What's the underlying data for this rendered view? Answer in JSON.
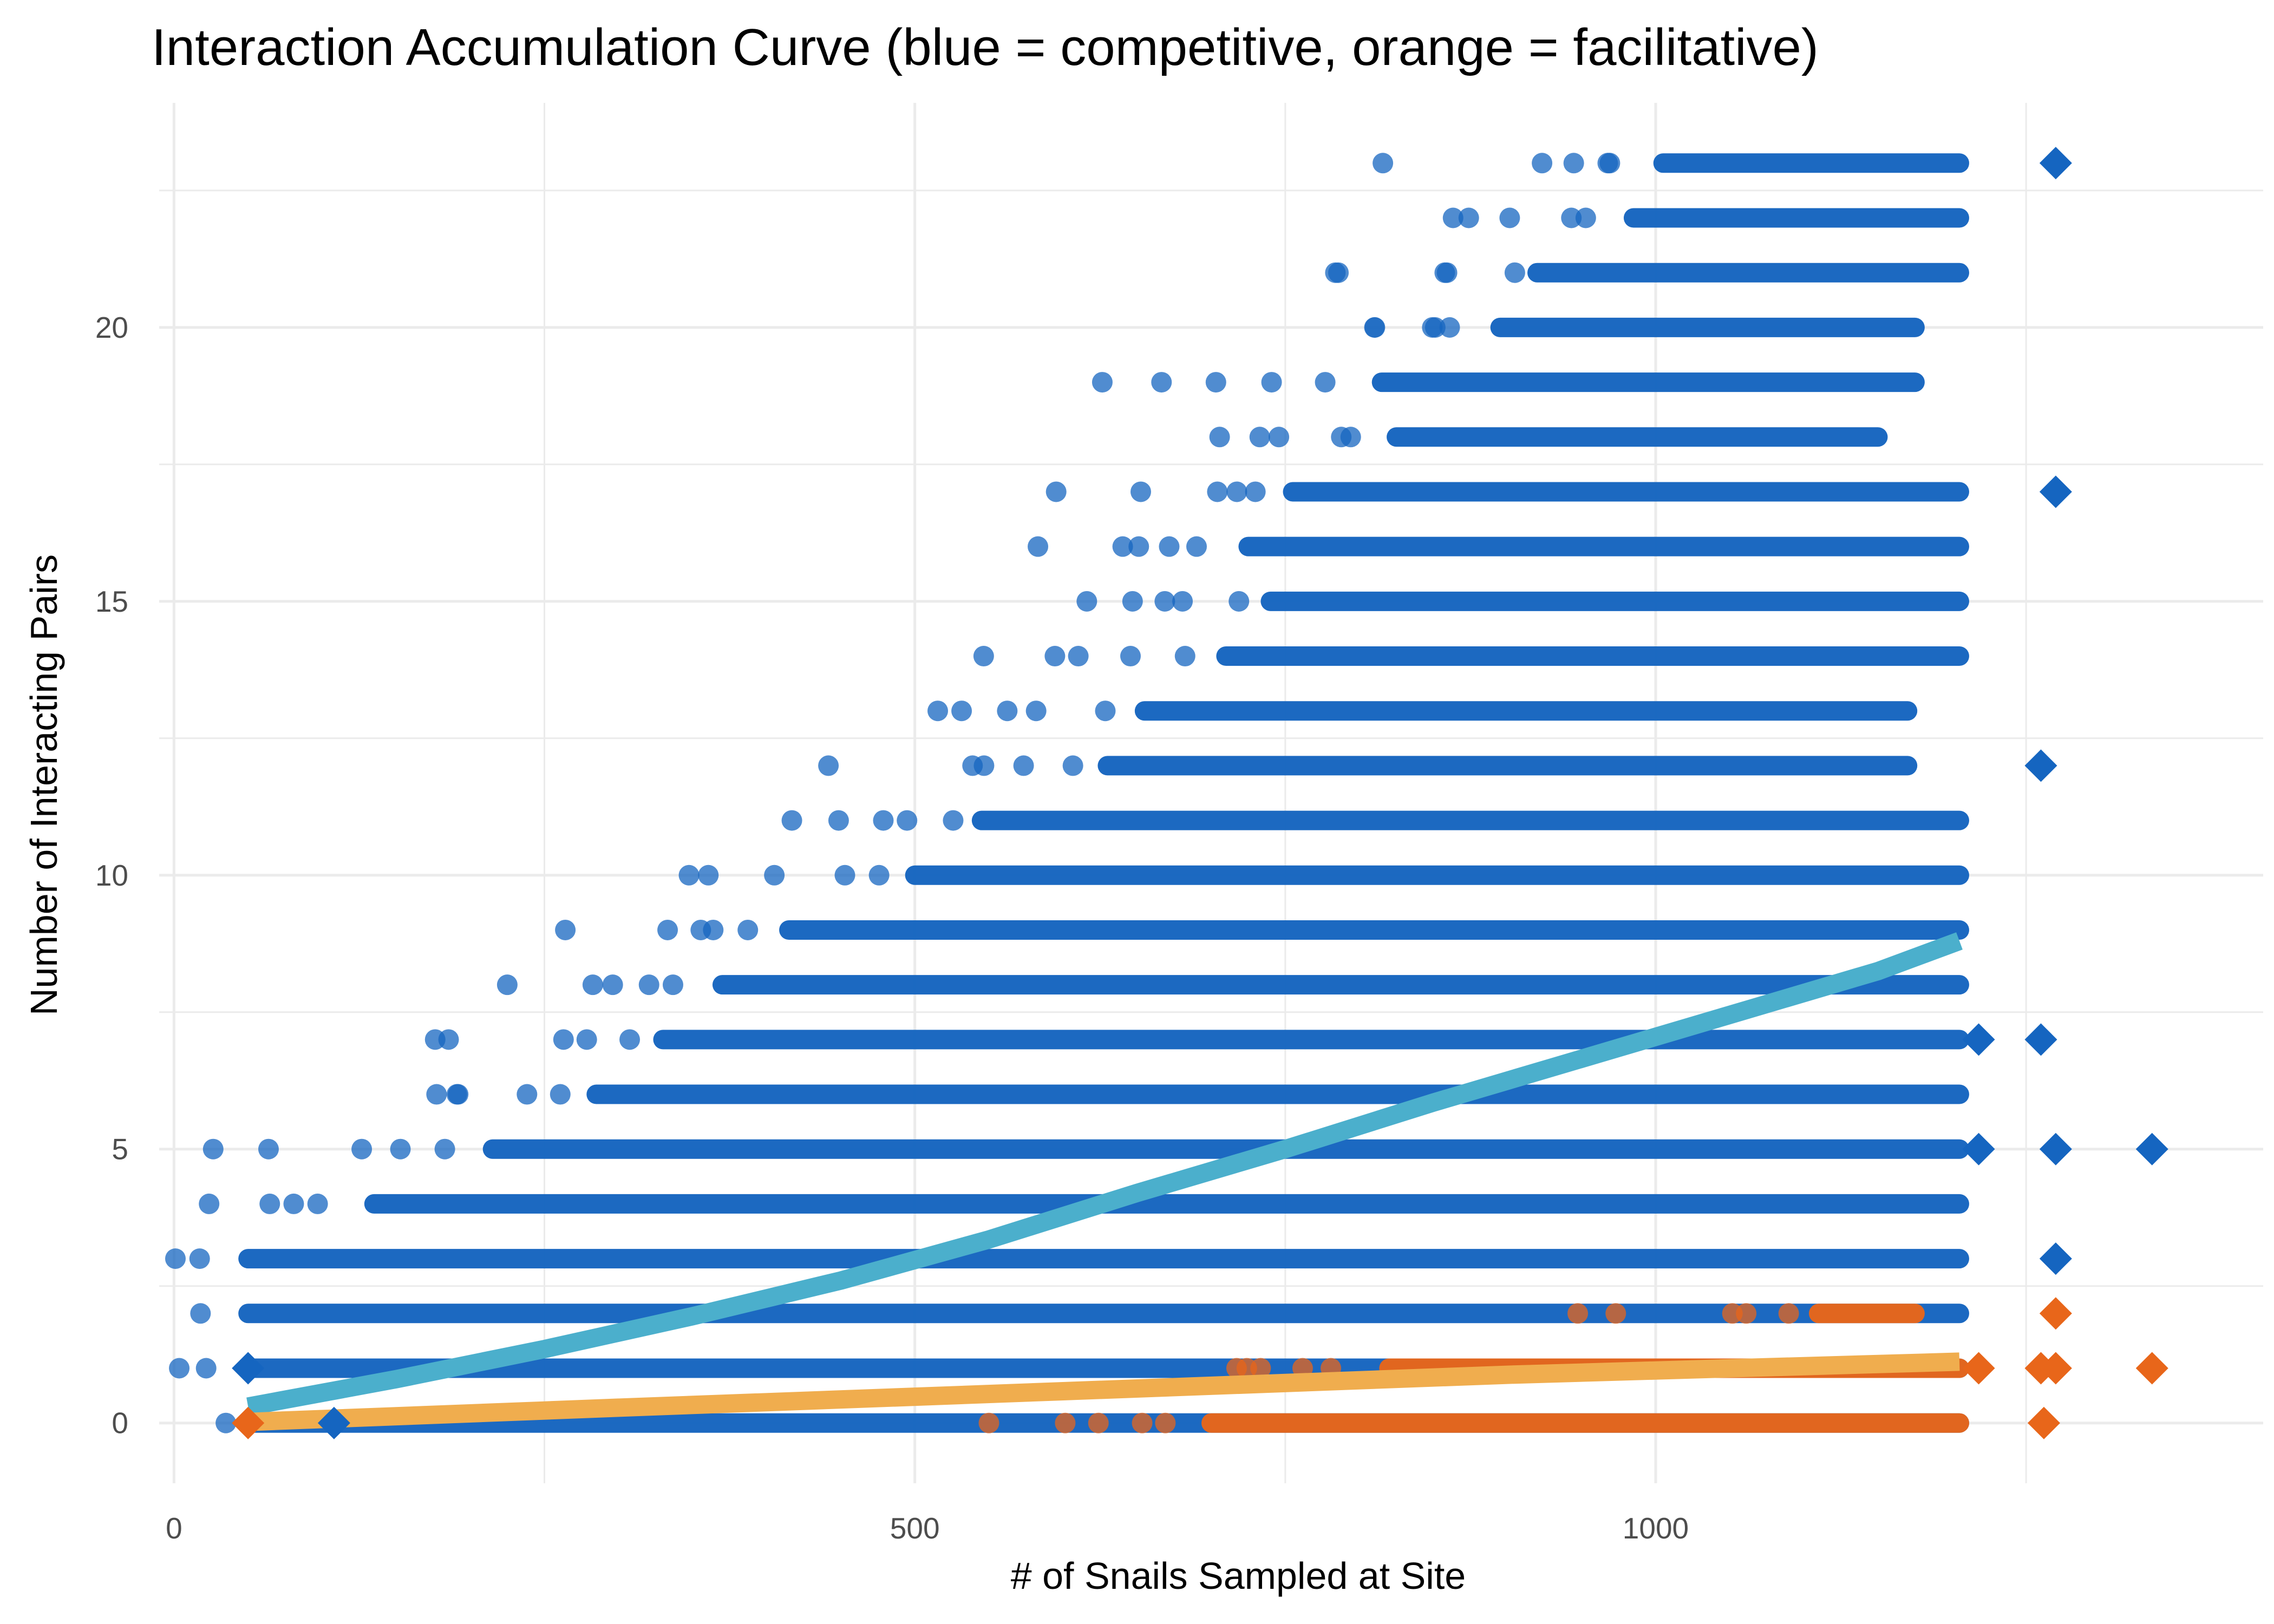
{
  "chart_data": {
    "type": "scatter",
    "title": "Interaction Accumulation Curve (blue = competitive, orange = facilitative)",
    "xlabel": "# of Snails Sampled at Site",
    "ylabel": "Number of Interacting Pairs",
    "xlim": [
      -10,
      1410
    ],
    "ylim": [
      -1.1,
      24.1
    ],
    "xticks": [
      0,
      500,
      1000
    ],
    "yticks": [
      0,
      5,
      10,
      15,
      20
    ],
    "grid": true,
    "legend": "none",
    "colors": {
      "competitive": "#1565C0",
      "facilitative": "#E8661A",
      "competitive_trend": "#4BAFCC",
      "facilitative_trend": "#F0AD4E"
    },
    "series": [
      {
        "kind": "rarefaction-bands",
        "color": "#1565C0",
        "bands": [
          {
            "y": 0,
            "x": [
              50,
              1205
            ]
          },
          {
            "y": 1,
            "x": [
              50,
              1205
            ]
          },
          {
            "y": 2,
            "x": [
              50,
              1205
            ]
          },
          {
            "y": 3,
            "x": [
              50,
              1205
            ]
          },
          {
            "y": 4,
            "x": [
              135,
              1205
            ]
          },
          {
            "y": 5,
            "x": [
              215,
              1205
            ]
          },
          {
            "y": 6,
            "x": [
              285,
              1205
            ]
          },
          {
            "y": 7,
            "x": [
              330,
              1205
            ]
          },
          {
            "y": 8,
            "x": [
              370,
              1205
            ]
          },
          {
            "y": 9,
            "x": [
              415,
              1205
            ]
          },
          {
            "y": 10,
            "x": [
              500,
              1205
            ]
          },
          {
            "y": 11,
            "x": [
              545,
              1205
            ]
          },
          {
            "y": 12,
            "x": [
              630,
              1170
            ]
          },
          {
            "y": 13,
            "x": [
              655,
              1170
            ]
          },
          {
            "y": 14,
            "x": [
              710,
              1205
            ]
          },
          {
            "y": 15,
            "x": [
              740,
              1205
            ]
          },
          {
            "y": 16,
            "x": [
              725,
              1205
            ]
          },
          {
            "y": 17,
            "x": [
              755,
              1205
            ]
          },
          {
            "y": 18,
            "x": [
              825,
              1150
            ]
          },
          {
            "y": 19,
            "x": [
              815,
              1175
            ]
          },
          {
            "y": 20,
            "x": [
              895,
              1175
            ]
          },
          {
            "y": 21,
            "x": [
              920,
              1205
            ]
          },
          {
            "y": 22,
            "x": [
              985,
              1205
            ]
          },
          {
            "y": 23,
            "x": [
              1005,
              1205
            ]
          }
        ]
      },
      {
        "kind": "rarefaction-bands",
        "color": "#E8661A",
        "bands": [
          {
            "y": 0,
            "x": [
              700,
              1205
            ]
          },
          {
            "y": 1,
            "x": [
              820,
              1205
            ]
          },
          {
            "y": 2,
            "x": [
              1110,
              1175
            ]
          }
        ]
      },
      {
        "kind": "observed-competitive",
        "marker": "diamond",
        "color": "#1565C0",
        "points": [
          {
            "x": 50,
            "y": 1
          },
          {
            "x": 108,
            "y": 0
          },
          {
            "x": 1218,
            "y": 7
          },
          {
            "x": 1218,
            "y": 5
          },
          {
            "x": 1260,
            "y": 12
          },
          {
            "x": 1260,
            "y": 7
          },
          {
            "x": 1270,
            "y": 23
          },
          {
            "x": 1270,
            "y": 17
          },
          {
            "x": 1270,
            "y": 5
          },
          {
            "x": 1270,
            "y": 3
          },
          {
            "x": 1335,
            "y": 5
          }
        ]
      },
      {
        "kind": "observed-facilitative",
        "marker": "diamond",
        "color": "#E8661A",
        "points": [
          {
            "x": 50,
            "y": 0
          },
          {
            "x": 1218,
            "y": 1
          },
          {
            "x": 1260,
            "y": 1
          },
          {
            "x": 1262,
            "y": 0
          },
          {
            "x": 1270,
            "y": 2
          },
          {
            "x": 1270,
            "y": 1
          },
          {
            "x": 1335,
            "y": 1
          }
        ]
      },
      {
        "kind": "trend-competitive",
        "color": "#4BAFCC",
        "x": [
          50,
          150,
          250,
          350,
          450,
          550,
          650,
          750,
          850,
          950,
          1050,
          1150,
          1205
        ],
        "y": [
          0.3,
          0.8,
          1.35,
          1.95,
          2.6,
          3.35,
          4.2,
          5.0,
          5.85,
          6.65,
          7.45,
          8.25,
          8.8
        ]
      },
      {
        "kind": "trend-facilitative",
        "color": "#F0AD4E",
        "x": [
          50,
          300,
          600,
          900,
          1205
        ],
        "y": [
          0.02,
          0.28,
          0.58,
          0.88,
          1.12
        ]
      }
    ]
  }
}
